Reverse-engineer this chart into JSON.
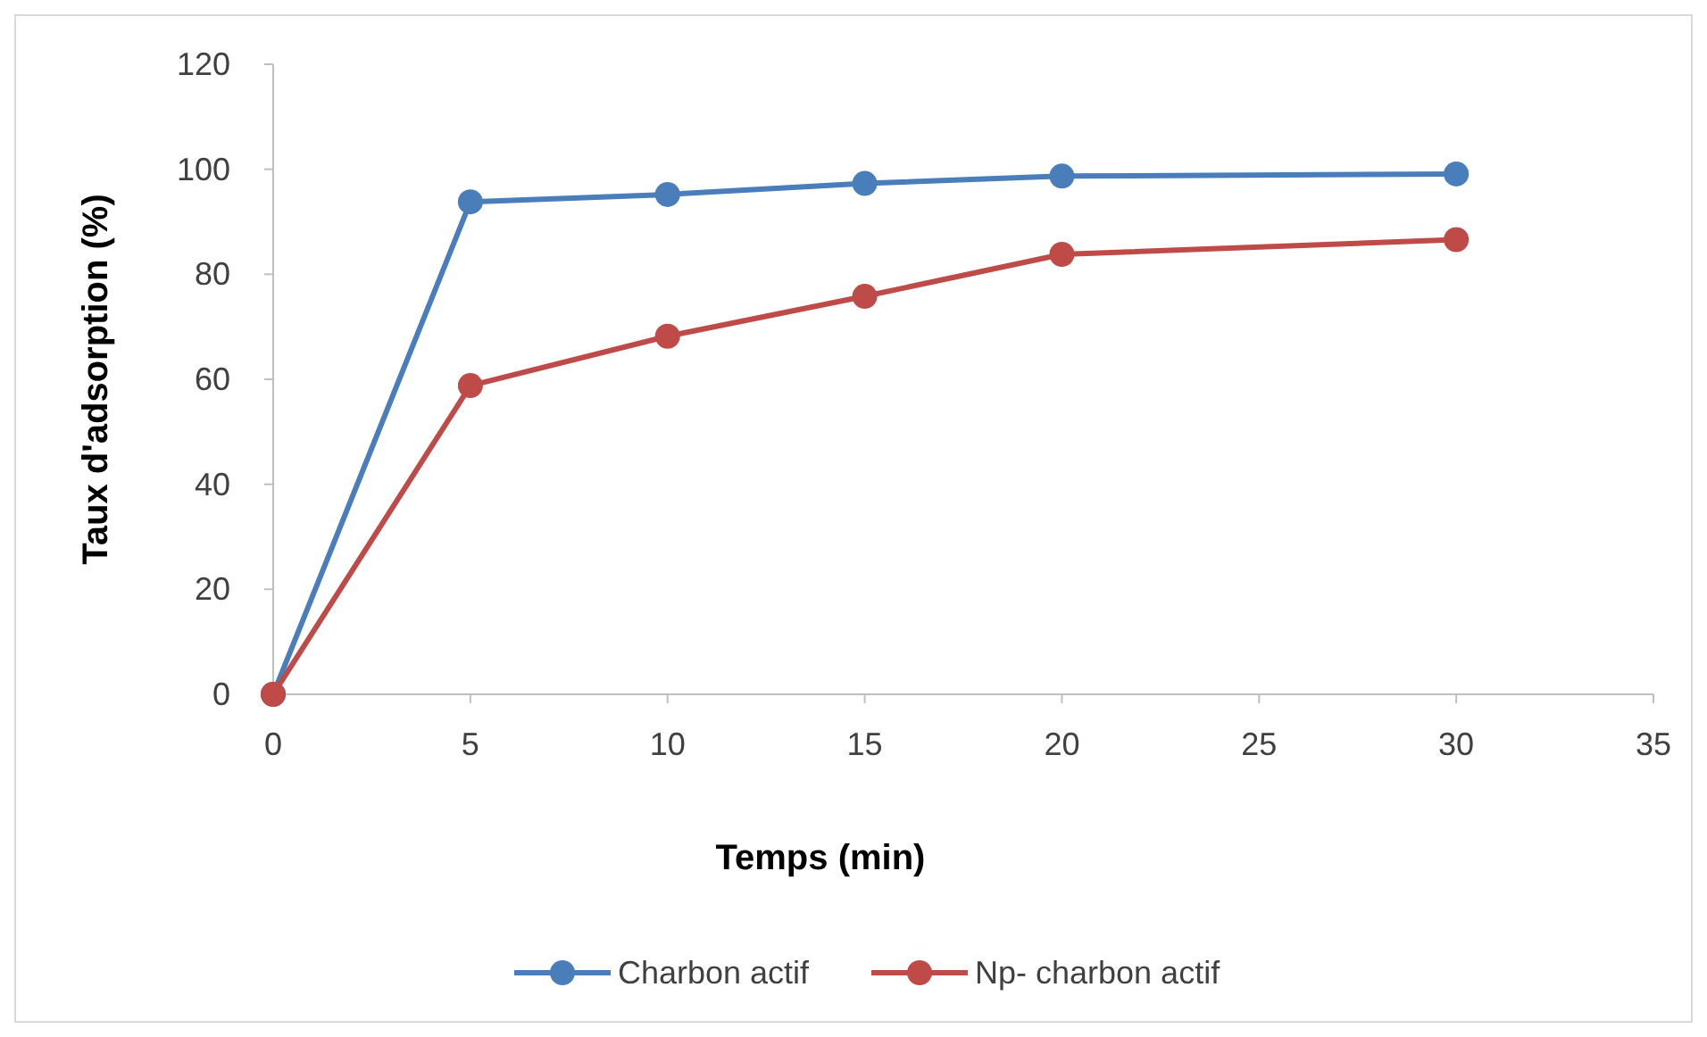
{
  "chart_data": {
    "type": "line",
    "xlabel": "Temps (min)",
    "ylabel": "Taux d'adsorption (%)",
    "x": [
      0,
      5,
      10,
      15,
      20,
      30
    ],
    "series": [
      {
        "name": "Charbon actif",
        "color": "#4a7ebb",
        "values": [
          0,
          93.8,
          95.2,
          97.3,
          98.7,
          99.1
        ]
      },
      {
        "name": "Np- charbon actif",
        "color": "#be4b48",
        "values": [
          0,
          58.8,
          68.2,
          75.8,
          83.8,
          86.6
        ]
      }
    ],
    "xlim": [
      0,
      35
    ],
    "xticks": [
      0,
      5,
      10,
      15,
      20,
      25,
      30,
      35
    ],
    "ylim": [
      0,
      120
    ],
    "yticks": [
      0,
      20,
      40,
      60,
      80,
      100,
      120
    ],
    "grid": false,
    "legend": "bottom",
    "marker": "circle",
    "line_style": "solid"
  }
}
